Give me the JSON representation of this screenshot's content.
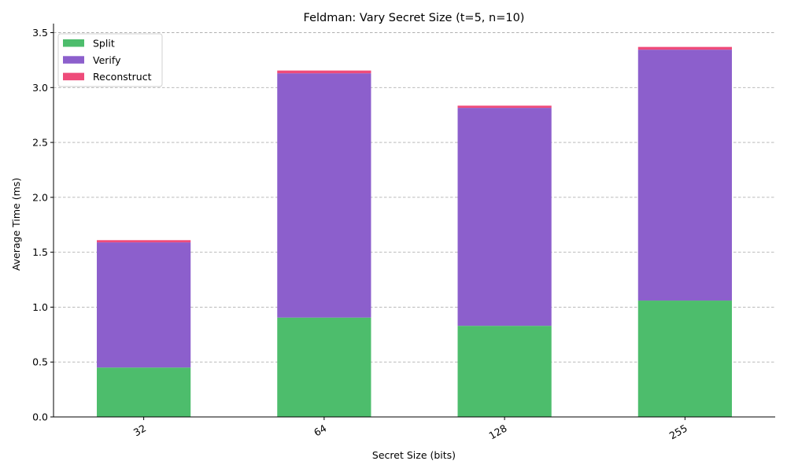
{
  "chart_data": {
    "type": "bar",
    "stacked": true,
    "title": "Feldman: Vary Secret Size (t=5, n=10)",
    "xlabel": "Secret Size (bits)",
    "ylabel": "Average Time (ms)",
    "categories": [
      "32",
      "64",
      "128",
      "255"
    ],
    "series": [
      {
        "name": "Split",
        "color": "#4dbd6c",
        "values": [
          0.45,
          0.905,
          0.83,
          1.06
        ]
      },
      {
        "name": "Verify",
        "color": "#8c5fcc",
        "values": [
          1.14,
          2.225,
          1.985,
          2.285
        ]
      },
      {
        "name": "Reconstruct",
        "color": "#ee4b7a",
        "values": [
          0.02,
          0.025,
          0.02,
          0.025
        ]
      }
    ],
    "ylim": [
      0,
      3.5
    ],
    "yticks": [
      "0.0",
      "0.5",
      "1.0",
      "1.5",
      "2.0",
      "2.5",
      "3.0",
      "3.5"
    ],
    "grid": "y-dashed",
    "legend_position": "top-left"
  }
}
